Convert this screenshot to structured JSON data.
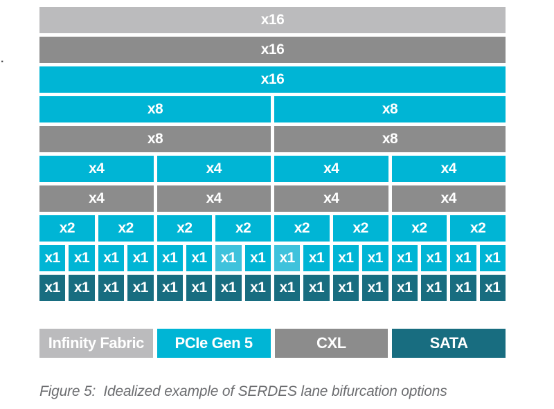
{
  "colors": {
    "infinity_fabric": "#bbbbbd",
    "cxl": "#8c8c8c",
    "pcie_gen5": "#00b5d5",
    "pcie_gen5_light": "#3fc2dc",
    "sata": "#186d80",
    "label_text": "#ffffff",
    "caption_text": "#6c6d70"
  },
  "diagram": {
    "rows": [
      {
        "name": "row-x16-infinity-fabric",
        "color": "infinity_fabric",
        "cells": [
          "x16"
        ]
      },
      {
        "name": "row-x16-cxl",
        "color": "cxl",
        "cells": [
          "x16"
        ]
      },
      {
        "name": "row-x16-pcie",
        "color": "pcie_gen5",
        "cells": [
          "x16"
        ]
      },
      {
        "name": "row-x8-pcie",
        "color": "pcie_gen5",
        "cells": [
          "x8",
          "x8"
        ]
      },
      {
        "name": "row-x8-cxl",
        "color": "cxl",
        "cells": [
          "x8",
          "x8"
        ]
      },
      {
        "name": "row-x4-pcie",
        "color": "pcie_gen5",
        "cells": [
          "x4",
          "x4",
          "x4",
          "x4"
        ]
      },
      {
        "name": "row-x4-cxl",
        "color": "cxl",
        "cells": [
          "x4",
          "x4",
          "x4",
          "x4"
        ]
      },
      {
        "name": "row-x2-pcie",
        "color": "pcie_gen5",
        "cells": [
          "x2",
          "x2",
          "x2",
          "x2",
          "x2",
          "x2",
          "x2",
          "x2"
        ]
      },
      {
        "name": "row-x1-pcie",
        "color": "pcie_gen5",
        "light_cells": [
          6,
          8
        ],
        "cells": [
          "x1",
          "x1",
          "x1",
          "x1",
          "x1",
          "x1",
          "x1",
          "x1",
          "x1",
          "x1",
          "x1",
          "x1",
          "x1",
          "x1",
          "x1",
          "x1"
        ]
      },
      {
        "name": "row-x1-sata",
        "color": "sata",
        "cells": [
          "x1",
          "x1",
          "x1",
          "x1",
          "x1",
          "x1",
          "x1",
          "x1",
          "x1",
          "x1",
          "x1",
          "x1",
          "x1",
          "x1",
          "x1",
          "x1"
        ]
      }
    ]
  },
  "legend": {
    "items": [
      {
        "label": "Infinity Fabric",
        "color": "infinity_fabric"
      },
      {
        "label": "PCIe Gen 5",
        "color": "pcie_gen5"
      },
      {
        "label": "CXL",
        "color": "cxl"
      },
      {
        "label": "SATA",
        "color": "sata"
      }
    ]
  },
  "figure": {
    "caption": "Figure 5:  Idealized example of SERDES lane bifurcation options"
  },
  "stray_mark": "."
}
